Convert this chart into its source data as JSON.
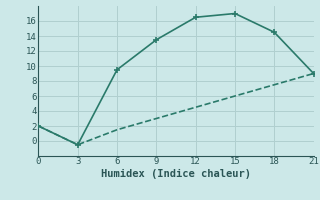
{
  "line1_x": [
    0,
    3,
    6,
    9,
    12,
    15,
    18,
    21
  ],
  "line1_y": [
    2,
    -0.5,
    9.5,
    13.5,
    16.5,
    17,
    14.5,
    9
  ],
  "line2_x": [
    0,
    3,
    6,
    9,
    12,
    15,
    18,
    21
  ],
  "line2_y": [
    2,
    -0.5,
    1.5,
    3.0,
    4.5,
    6.0,
    7.5,
    9
  ],
  "line_color": "#2a7a6a",
  "bg_color": "#cce8e8",
  "grid_color": "#b0cfcf",
  "xlabel": "Humidex (Indice chaleur)",
  "xlim": [
    0,
    21
  ],
  "ylim": [
    -2,
    18
  ],
  "xticks": [
    0,
    3,
    6,
    9,
    12,
    15,
    18,
    21
  ],
  "yticks": [
    0,
    2,
    4,
    6,
    8,
    10,
    12,
    14,
    16
  ],
  "marker": "+",
  "markersize": 5,
  "linewidth": 1.2,
  "font_color": "#2a5555",
  "label_fontsize": 7.5
}
